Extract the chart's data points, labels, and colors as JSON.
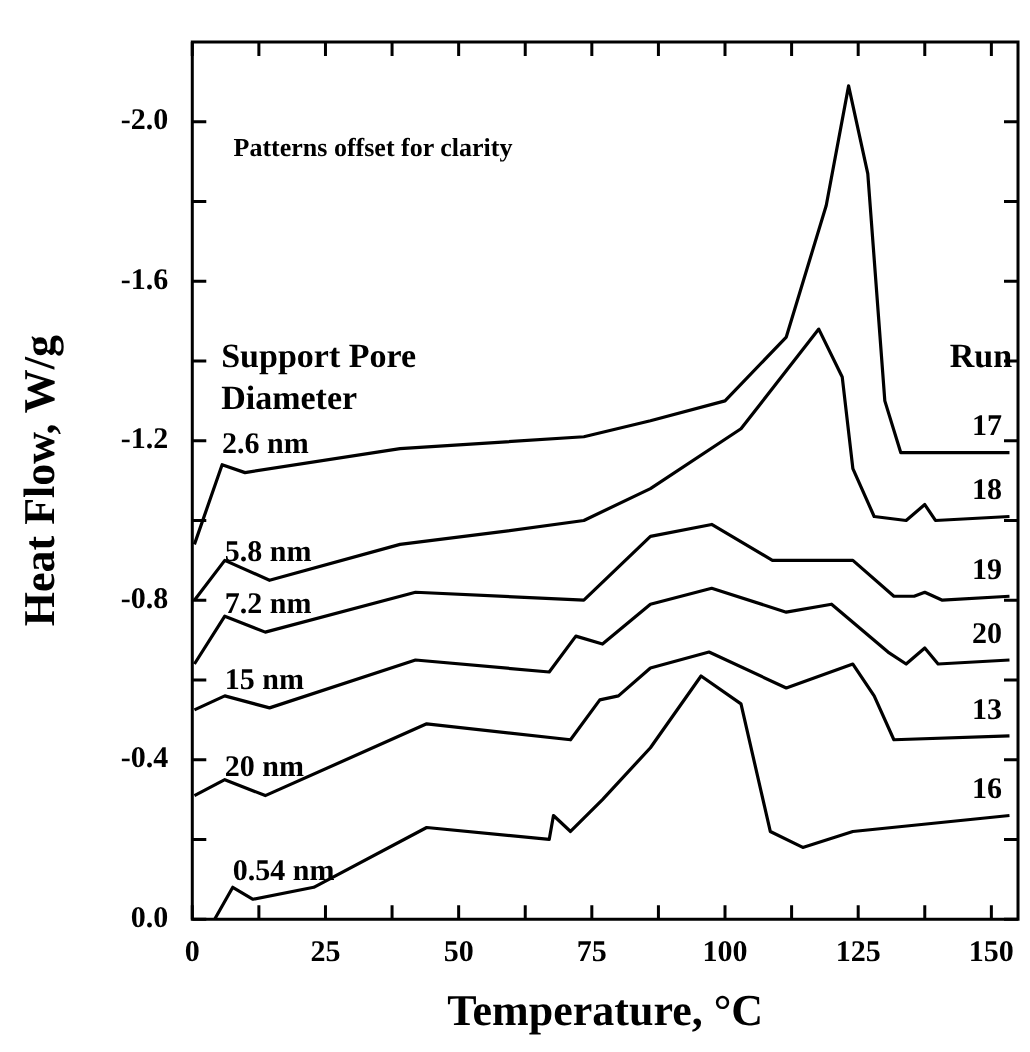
{
  "chart_data": {
    "type": "line",
    "xlabel": "Temperature, °C",
    "ylabel": "Heat Flow, W/g",
    "xlim": [
      0,
      155
    ],
    "ylim": [
      0,
      -2.2
    ],
    "xticks": [
      0,
      {
        "value": 12.5,
        "label": null
      },
      25,
      {
        "value": 37.5,
        "label": null
      },
      50,
      {
        "value": 62.5,
        "label": null
      },
      75,
      {
        "value": 87.5,
        "label": null
      },
      100,
      {
        "value": 112.5,
        "label": null
      },
      125,
      {
        "value": 137.5,
        "label": null
      },
      150
    ],
    "yticks": [
      {
        "value": 0,
        "label": "0.0"
      },
      {
        "value": -0.2,
        "label": null
      },
      {
        "value": -0.4,
        "label": "-0.4"
      },
      {
        "value": -0.6,
        "label": null
      },
      {
        "value": -0.8,
        "label": "-0.8"
      },
      {
        "value": -1.0,
        "label": null
      },
      {
        "value": -1.2,
        "label": "-1.2"
      },
      {
        "value": -1.4,
        "label": null
      },
      {
        "value": -1.6,
        "label": "-1.6"
      },
      {
        "value": -1.8,
        "label": null
      },
      {
        "value": -2.0,
        "label": "-2.0"
      }
    ],
    "grid": false,
    "legend": false,
    "series": [
      {
        "name": "2.6 nm",
        "color": "#000000",
        "x": [
          0.4,
          5.6,
          9.9,
          39,
          73.5,
          86,
          100,
          111.5,
          119,
          123.2,
          126.8,
          130,
          133,
          153.4
        ],
        "values": [
          -0.94,
          -1.14,
          -1.12,
          -1.18,
          -1.21,
          -1.25,
          -1.3,
          -1.46,
          -1.79,
          -2.09,
          -1.87,
          -1.3,
          -1.17,
          -1.17
        ]
      },
      {
        "name": "5.8 nm",
        "color": "#000000",
        "x": [
          0.4,
          6.1,
          14.5,
          39,
          57,
          73.5,
          86,
          103,
          117.6,
          122,
          124,
          128,
          134,
          137.5,
          139.5,
          153.4
        ],
        "values": [
          -0.8,
          -0.9,
          -0.85,
          -0.94,
          -0.97,
          -1.0,
          -1.08,
          -1.23,
          -1.48,
          -1.36,
          -1.13,
          -1.01,
          -1.0,
          -1.04,
          -1.0,
          -1.01
        ]
      },
      {
        "name": "7.2 nm",
        "color": "#000000",
        "x": [
          0.4,
          6.1,
          13.7,
          41.9,
          73.5,
          86,
          97.5,
          108.9,
          124,
          131.7,
          135.5,
          137.5,
          140.8,
          153.4
        ],
        "values": [
          -0.64,
          -0.76,
          -0.72,
          -0.82,
          -0.8,
          -0.96,
          -0.99,
          -0.9,
          -0.9,
          -0.81,
          -0.81,
          -0.82,
          -0.8,
          -0.81
        ]
      },
      {
        "name": "15 nm",
        "color": "#000000",
        "x": [
          0.4,
          6.1,
          14.5,
          41.9,
          67,
          72,
          77,
          86,
          97.5,
          111.5,
          120,
          130.6,
          134,
          137.5,
          140,
          153.4
        ],
        "values": [
          -0.525,
          -0.56,
          -0.53,
          -0.65,
          -0.62,
          -0.71,
          -0.69,
          -0.79,
          -0.83,
          -0.77,
          -0.79,
          -0.67,
          -0.64,
          -0.68,
          -0.64,
          -0.65
        ]
      },
      {
        "name": "20 nm",
        "color": "#000000",
        "x": [
          0.4,
          6.1,
          13.7,
          44,
          71,
          76.5,
          80,
          86,
          97,
          111.5,
          124,
          128,
          131.7,
          153.4
        ],
        "values": [
          -0.31,
          -0.35,
          -0.31,
          -0.49,
          -0.45,
          -0.55,
          -0.56,
          -0.63,
          -0.67,
          -0.58,
          -0.64,
          -0.56,
          -0.45,
          -0.46
        ]
      },
      {
        "name": "0.54 nm",
        "color": "#000000",
        "x": [
          4.2,
          7.6,
          11.4,
          22.8,
          44,
          67,
          67.8,
          71,
          77,
          86,
          95.5,
          103,
          108.5,
          114.6,
          124,
          153.4
        ],
        "values": [
          0,
          -0.08,
          -0.05,
          -0.08,
          -0.23,
          -0.2,
          -0.26,
          -0.22,
          -0.3,
          -0.43,
          -0.61,
          -0.54,
          -0.22,
          -0.18,
          -0.22,
          -0.26
        ]
      }
    ],
    "annotations": [
      "Patterns offset for clarity",
      "Support Pore Diameter",
      "Run",
      "17",
      "18",
      "19",
      "20",
      "13",
      "16"
    ]
  }
}
